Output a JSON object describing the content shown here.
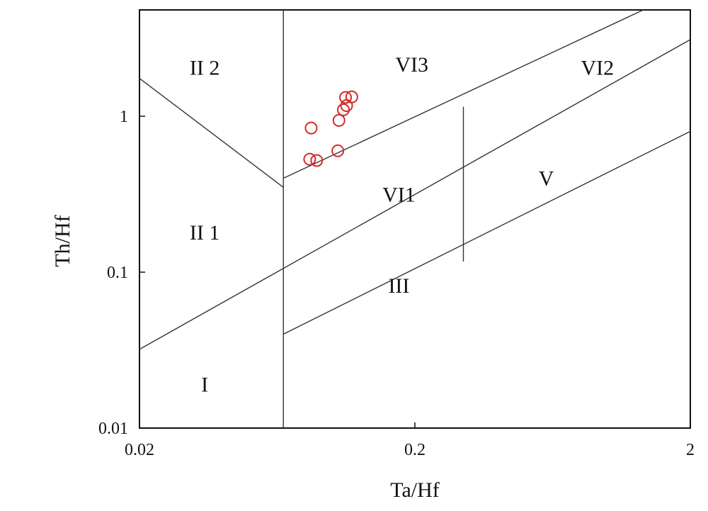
{
  "chart_data": {
    "type": "scatter",
    "title": "",
    "xlabel": "Ta/Hf",
    "ylabel": "Th/Hf",
    "x_scale": "log",
    "y_scale": "log",
    "xlim": [
      0.02,
      2
    ],
    "ylim": [
      0.01,
      5
    ],
    "x_ticks": [
      "0.02",
      "0.2",
      "2"
    ],
    "y_ticks": [
      "0.01",
      "0.1",
      "1"
    ],
    "grid": false,
    "marker_color": "#d42a2a",
    "marker": "open-circle",
    "points": [
      {
        "x": 0.083,
        "y": 0.53
      },
      {
        "x": 0.088,
        "y": 0.52
      },
      {
        "x": 0.084,
        "y": 0.84
      },
      {
        "x": 0.105,
        "y": 0.6
      },
      {
        "x": 0.106,
        "y": 0.94
      },
      {
        "x": 0.11,
        "y": 1.1
      },
      {
        "x": 0.113,
        "y": 1.17
      },
      {
        "x": 0.112,
        "y": 1.32
      },
      {
        "x": 0.118,
        "y": 1.33
      }
    ],
    "boundaries": [
      {
        "from": [
          0.02,
          1.75
        ],
        "to": [
          0.0666,
          0.35
        ]
      },
      {
        "from": [
          0.0666,
          0.01
        ],
        "to": [
          0.0666,
          5
        ]
      },
      {
        "from": [
          0.02,
          0.032
        ],
        "to": [
          2,
          3.1
        ]
      },
      {
        "from": [
          0.0666,
          0.4
        ],
        "to": [
          1.35,
          5
        ]
      },
      {
        "from": [
          0.0666,
          0.04
        ],
        "to": [
          2,
          0.8
        ]
      },
      {
        "from": [
          0.3,
          0.117
        ],
        "to": [
          0.3,
          1.15
        ]
      }
    ],
    "field_labels": [
      {
        "text": "II 2",
        "x": 0.0345,
        "y": 2.05
      },
      {
        "text": "VI3",
        "x": 0.195,
        "y": 2.15
      },
      {
        "text": "VI2",
        "x": 0.92,
        "y": 2.05
      },
      {
        "text": "VI1",
        "x": 0.175,
        "y": 0.315
      },
      {
        "text": "V",
        "x": 0.6,
        "y": 0.4
      },
      {
        "text": "II 1",
        "x": 0.0345,
        "y": 0.18
      },
      {
        "text": "III",
        "x": 0.175,
        "y": 0.082
      },
      {
        "text": "I",
        "x": 0.0345,
        "y": 0.019
      }
    ]
  }
}
